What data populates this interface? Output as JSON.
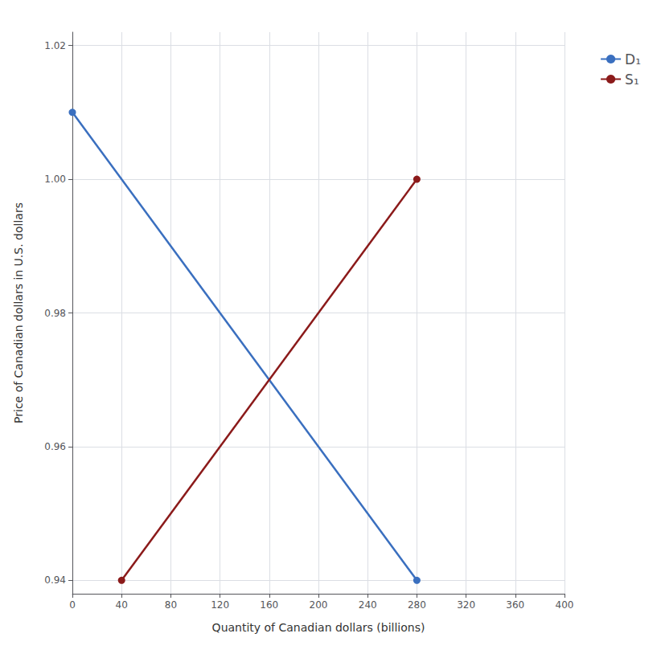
{
  "chart_data": {
    "type": "line",
    "xlabel": "Quantity of Canadian dollars (billions)",
    "ylabel": "Price of Canadian dollars in U.S. dollars",
    "series": [
      {
        "name": "D₁",
        "color": "#3A6FBF",
        "x": [
          0,
          280
        ],
        "values": [
          1.01,
          0.94
        ]
      },
      {
        "name": "S₁",
        "color": "#8B1A1A",
        "x": [
          40,
          280
        ],
        "values": [
          0.94,
          1.0
        ]
      }
    ],
    "marker": "circle",
    "xlim": [
      0,
      400
    ],
    "xticks": [
      0,
      40,
      80,
      120,
      160,
      200,
      240,
      280,
      320,
      360,
      400
    ],
    "ylim": [
      0.938,
      1.022
    ],
    "yticks": [
      0.94,
      0.96,
      0.98,
      {
        "value": 1.0,
        "label": "1.00"
      },
      1.02
    ],
    "grid": true,
    "legend": "right"
  }
}
